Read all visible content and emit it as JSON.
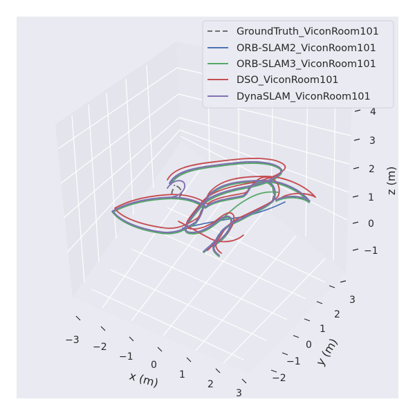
{
  "chart_data": {
    "type": "line3d",
    "title": "",
    "xlabel": "x (m)",
    "ylabel": "y (m)",
    "zlabel": "z (m)",
    "xlim": [
      -3,
      3
    ],
    "ylim": [
      -2.5,
      3.5
    ],
    "zlim": [
      -1.5,
      4.2
    ],
    "x_ticks": [
      "−3",
      "−2",
      "−1",
      "0",
      "1",
      "2",
      "3"
    ],
    "y_ticks": [
      "−2",
      "−1",
      "0",
      "1",
      "2",
      "3"
    ],
    "z_ticks": [
      "−1",
      "0",
      "1",
      "2",
      "3",
      "4"
    ],
    "grid": true,
    "legend_position": "top-right",
    "series": [
      {
        "name": "GroundTruth_ViconRoom101",
        "color": "#6e6e6e",
        "style": "dashed"
      },
      {
        "name": "ORB-SLAM2_ViconRoom101",
        "color": "#4c72b0",
        "style": "solid"
      },
      {
        "name": "ORB-SLAM3_ViconRoom101",
        "color": "#55a868",
        "style": "solid"
      },
      {
        "name": "DSO_ViconRoom101",
        "color": "#c44e52",
        "style": "solid"
      },
      {
        "name": "DynaSLAM_ViconRoom101",
        "color": "#8172b2",
        "style": "solid"
      }
    ]
  }
}
